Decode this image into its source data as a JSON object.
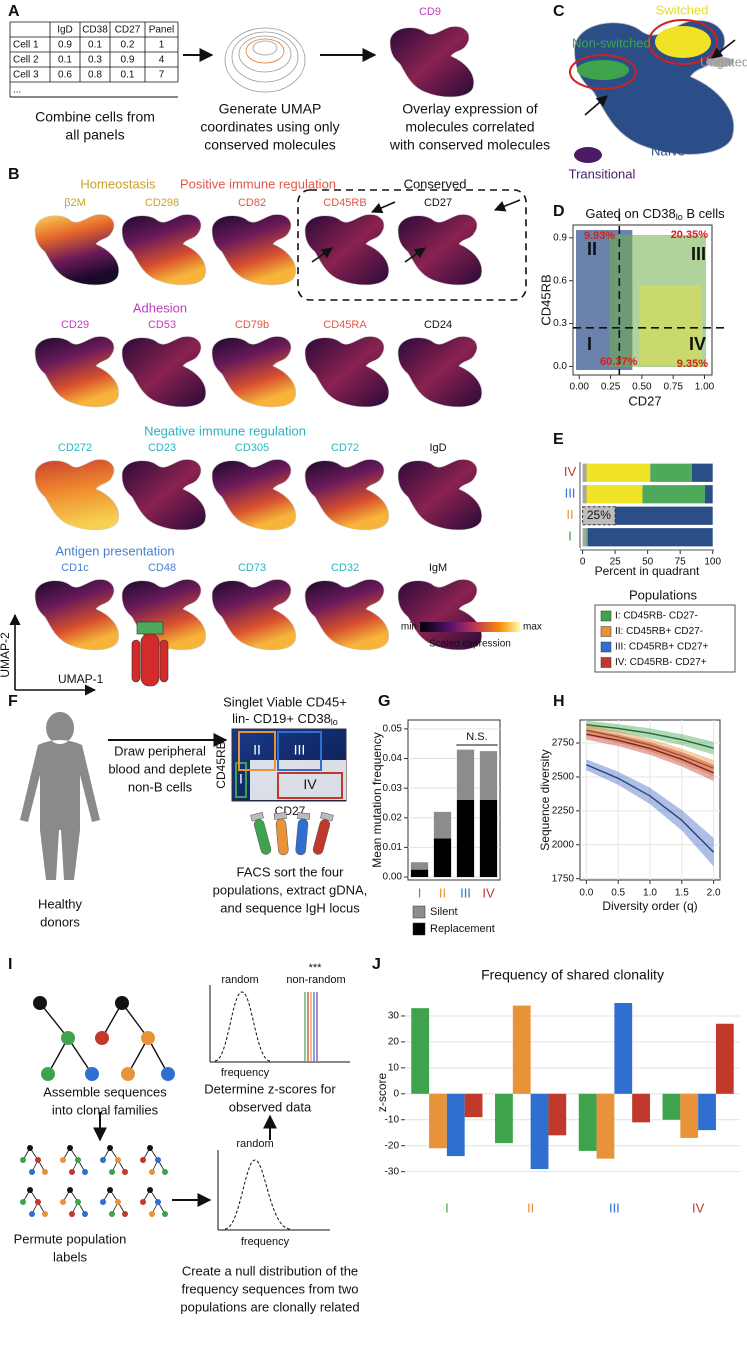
{
  "panel_labels": [
    "A",
    "B",
    "C",
    "D",
    "E",
    "F",
    "G",
    "H",
    "I",
    "J"
  ],
  "a": {
    "table": {
      "header": [
        "IgD",
        "CD38",
        "CD27",
        "Panel"
      ],
      "rows": [
        [
          "Cell 1",
          "0.9",
          "0.1",
          "0.2",
          "1"
        ],
        [
          "Cell 2",
          "0.1",
          "0.3",
          "0.9",
          "4"
        ],
        [
          "Cell 3",
          "0.6",
          "0.8",
          "0.1",
          "7"
        ],
        [
          "..."
        ]
      ]
    },
    "steps": [
      [
        "Combine cells from",
        "all panels"
      ],
      [
        "Generate UMAP",
        "coordinates using only",
        "conserved molecules"
      ],
      [
        "Overlay expression of",
        "molecules correlated",
        "with conserved molecules"
      ]
    ],
    "overlay_marker": "CD9"
  },
  "c": {
    "labels": [
      {
        "text": "Switched",
        "color": "#e6dc1e"
      },
      {
        "text": "Non-switched",
        "color": "#3fa34d"
      },
      {
        "text": "Ungated",
        "color": "#9a9a9a"
      },
      {
        "text": "Naïve",
        "color": "#2c4e88"
      },
      {
        "text": "Transitional",
        "color": "#4b1a66"
      }
    ]
  },
  "b": {
    "rows": [
      {
        "groups": [
          {
            "title": "Homeostasis",
            "color": "#c9a227"
          },
          {
            "title": "Positive immune regulation",
            "color": "#e0574a"
          },
          {
            "title": "Conserved",
            "color": "#111111"
          }
        ],
        "markers": [
          {
            "name": "β2M",
            "color": "#c9a227"
          },
          {
            "name": "CD298",
            "color": "#c9a227"
          },
          {
            "name": "CD82",
            "color": "#e0574a"
          },
          {
            "name": "CD45RB",
            "color": "#e0574a"
          },
          {
            "name": "CD27",
            "color": "#111111"
          }
        ]
      },
      {
        "groups": [
          {
            "title": "Adhesion",
            "color": "#c23bc0"
          }
        ],
        "markers": [
          {
            "name": "CD29",
            "color": "#c23bc0"
          },
          {
            "name": "CD53",
            "color": "#c23bc0"
          },
          {
            "name": "CD79b",
            "color": "#e0574a"
          },
          {
            "name": "CD45RA",
            "color": "#e0574a"
          },
          {
            "name": "CD24",
            "color": "#111111"
          }
        ]
      },
      {
        "groups": [
          {
            "title": "Negative immune regulation",
            "color": "#2bb3c0"
          }
        ],
        "markers": [
          {
            "name": "CD272",
            "color": "#2bb3c0"
          },
          {
            "name": "CD23",
            "color": "#2bb3c0"
          },
          {
            "name": "CD305",
            "color": "#2bb3c0"
          },
          {
            "name": "CD72",
            "color": "#2bb3c0"
          },
          {
            "name": "IgD",
            "color": "#111111"
          }
        ]
      },
      {
        "groups": [
          {
            "title": "Antigen presentation",
            "color": "#4a7fd0"
          }
        ],
        "markers": [
          {
            "name": "CD1c",
            "color": "#4a7fd0"
          },
          {
            "name": "CD48",
            "color": "#4a7fd0"
          },
          {
            "name": "CD73",
            "color": "#2bb3c0"
          },
          {
            "name": "CD32",
            "color": "#2bb3c0"
          },
          {
            "name": "IgM",
            "color": "#111111"
          }
        ]
      }
    ],
    "colorbar": {
      "min": "min",
      "max": "max",
      "label": "Scaled expression"
    },
    "axes": {
      "y": "UMAP-2",
      "x": "UMAP-1"
    }
  },
  "d": {
    "title_parts": [
      "Gated on CD38",
      "lo",
      " B cells"
    ],
    "xlabel": "CD27",
    "ylabel": "CD45RB",
    "xlim": [
      -0.05,
      1.06
    ],
    "ylim": [
      -0.06,
      0.99
    ],
    "xticks": [
      {
        "value": 0,
        "label": "0.00"
      },
      {
        "value": 0.25,
        "label": "0.25"
      },
      {
        "value": 0.5,
        "label": "0.50"
      },
      {
        "value": 0.75,
        "label": "0.75"
      },
      {
        "value": 1,
        "label": "1.00"
      }
    ],
    "yticks": [
      {
        "value": 0,
        "label": "0.0"
      },
      {
        "value": 0.3,
        "label": "0.3"
      },
      {
        "value": 0.6,
        "label": "0.6"
      },
      {
        "value": 0.9,
        "label": "0.9"
      }
    ],
    "gates": {
      "x": 0.32,
      "y": 0.27
    },
    "quadrants": [
      {
        "label": "I",
        "percent": "60.37%"
      },
      {
        "label": "II",
        "percent": "9.93%"
      },
      {
        "label": "III",
        "percent": "20.35%"
      },
      {
        "label": "IV",
        "percent": "9.35%"
      }
    ]
  },
  "populations": {
    "title": "Populations",
    "items": [
      {
        "label": "I: CD45RB- CD27-",
        "color": "#3fa34d"
      },
      {
        "label": "II: CD45RB+ CD27-",
        "color": "#e8923a"
      },
      {
        "label": "III: CD45RB+ CD27+",
        "color": "#2f6fd0"
      },
      {
        "label": "IV: CD45RB- CD27+",
        "color": "#c0392b"
      }
    ]
  },
  "f": {
    "donor": [
      "Healthy",
      "donors"
    ],
    "draw": [
      "Draw peripheral",
      "blood and deplete",
      "non-B cells"
    ],
    "plot_title": [
      "Singlet Viable CD45+",
      "lin- CD19+ CD38",
      "lo"
    ],
    "xlabel": "CD27",
    "ylabel": "CD45RB",
    "gates": [
      "I",
      "II",
      "III",
      "IV"
    ],
    "sort": [
      "FACS sort the four",
      "populations, extract gDNA,",
      "and sequence IgH locus"
    ]
  },
  "i": {
    "assemble": [
      "Assemble sequences",
      "into clonal families"
    ],
    "permute": [
      "Permute population",
      "labels"
    ],
    "null": [
      "Create a null distribution of the",
      "frequency sequences from two",
      "populations are clonally related"
    ],
    "null_plot": {
      "curve": "random",
      "axis": "frequency"
    },
    "observed_plot": {
      "curve": "random",
      "observed": "non-random",
      "significance": "***",
      "axis": "frequency"
    },
    "determine": [
      "Determine z-scores for",
      "observed data"
    ]
  },
  "chart_data": [
    {
      "type": "bar",
      "orientation": "horizontal",
      "stacked": true,
      "categories": [
        "I",
        "II",
        "III",
        "IV"
      ],
      "category_colors": [
        "#3fa34d",
        "#e8923a",
        "#2f6fd0",
        "#c0392b"
      ],
      "series": [
        {
          "color": "#a6a6a6",
          "values": [
            3,
            3,
            3,
            3
          ]
        },
        {
          "color": "#f0e224",
          "values": [
            0,
            0,
            43,
            49
          ]
        },
        {
          "color": "#4caa5a",
          "values": [
            1,
            3,
            48,
            32
          ]
        },
        {
          "color": "#2c4e88",
          "values": [
            96,
            94,
            6,
            16
          ]
        }
      ],
      "xlim": [
        -2,
        101
      ],
      "xticks": [
        0,
        25,
        50,
        75,
        100
      ],
      "xlabel": "Percent in quadrant",
      "annotation": {
        "text": "25%",
        "value": 25
      }
    },
    {
      "type": "bar",
      "stacked": true,
      "categories": [
        "I",
        "II",
        "III",
        "IV"
      ],
      "category_colors": [
        "#3fa34d",
        "#e8923a",
        "#2f6fd0",
        "#c0392b"
      ],
      "series": [
        {
          "name": "Replacement",
          "color": "#000000",
          "values": [
            0.0025,
            0.013,
            0.026,
            0.026
          ]
        },
        {
          "name": "Silent",
          "color": "#8c8c8c",
          "values": [
            0.0025,
            0.009,
            0.017,
            0.0165
          ]
        }
      ],
      "ylim": [
        -0.001,
        0.053
      ],
      "yticks": [
        {
          "value": 0,
          "label": "0.00"
        },
        {
          "value": 0.01,
          "label": "0.01"
        },
        {
          "value": 0.02,
          "label": "0.02"
        },
        {
          "value": 0.03,
          "label": "0.03"
        },
        {
          "value": 0.04,
          "label": "0.04"
        },
        {
          "value": 0.05,
          "label": "0.05"
        }
      ],
      "ylabel": "Mean mutation frequency",
      "grid": true,
      "legend": "bottom",
      "annotation": "N.S."
    },
    {
      "type": "line",
      "x": [
        0,
        0.5,
        1,
        1.5,
        2
      ],
      "series": [
        {
          "color": "#4caa5a",
          "values": [
            2885,
            2858,
            2822,
            2775,
            2712
          ],
          "lower": [
            2855,
            2826,
            2786,
            2735,
            2665
          ],
          "upper": [
            2915,
            2890,
            2858,
            2815,
            2760
          ]
        },
        {
          "color": "#e8923a",
          "values": [
            2845,
            2795,
            2735,
            2655,
            2565
          ],
          "lower": [
            2805,
            2752,
            2688,
            2602,
            2505
          ],
          "upper": [
            2885,
            2838,
            2782,
            2708,
            2625
          ]
        },
        {
          "color": "#c8443a",
          "values": [
            2815,
            2770,
            2710,
            2630,
            2530
          ],
          "lower": [
            2775,
            2727,
            2663,
            2577,
            2470
          ],
          "upper": [
            2855,
            2813,
            2757,
            2683,
            2590
          ]
        },
        {
          "color": "#4a70c8",
          "values": [
            2590,
            2490,
            2360,
            2180,
            1945
          ],
          "lower": [
            2550,
            2442,
            2300,
            2105,
            1840
          ],
          "upper": [
            2630,
            2538,
            2420,
            2255,
            2050
          ]
        }
      ],
      "xlim": [
        -0.1,
        2.1
      ],
      "xticks": [
        {
          "value": 0,
          "label": "0.0"
        },
        {
          "value": 0.5,
          "label": "0.5"
        },
        {
          "value": 1,
          "label": "1.0"
        },
        {
          "value": 1.5,
          "label": "1.5"
        },
        {
          "value": 2,
          "label": "2.0"
        }
      ],
      "ylim": [
        1740,
        2920
      ],
      "yticks": [
        1750,
        2000,
        2250,
        2500,
        2750
      ],
      "xlabel": "Diversity order (q)",
      "ylabel": "Sequence diversity",
      "grid": true
    },
    {
      "type": "bar",
      "title": "Frequency of shared clonality",
      "categories": [
        "I",
        "II",
        "III",
        "IV"
      ],
      "category_colors": [
        "#3fa34d",
        "#e8923a",
        "#2f6fd0",
        "#c0392b"
      ],
      "series": [
        {
          "color": "#3fa34d",
          "values": [
            33,
            -19,
            -22,
            -10
          ]
        },
        {
          "color": "#e8923a",
          "values": [
            -21,
            34,
            -25,
            -17
          ]
        },
        {
          "color": "#2f6fd0",
          "values": [
            -24,
            -29,
            35,
            -14
          ]
        },
        {
          "color": "#c0392b",
          "values": [
            -9,
            -16,
            -11,
            27
          ]
        }
      ],
      "ylim": [
        -39,
        40
      ],
      "yticks": [
        -30,
        -20,
        -10,
        0,
        10,
        20,
        30
      ],
      "ylabel": "z-score",
      "grid": true
    }
  ]
}
